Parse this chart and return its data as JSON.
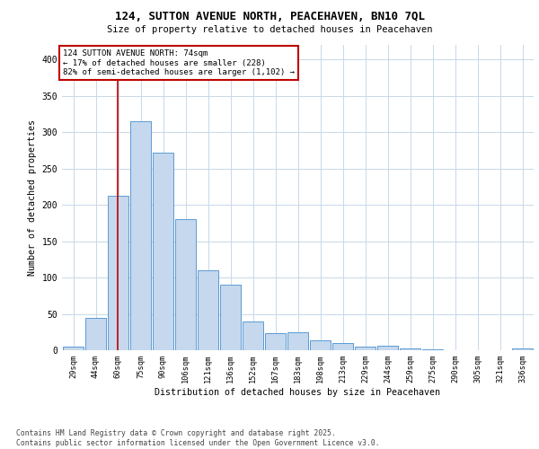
{
  "title_line1": "124, SUTTON AVENUE NORTH, PEACEHAVEN, BN10 7QL",
  "title_line2": "Size of property relative to detached houses in Peacehaven",
  "xlabel": "Distribution of detached houses by size in Peacehaven",
  "ylabel": "Number of detached properties",
  "categories": [
    "29sqm",
    "44sqm",
    "60sqm",
    "75sqm",
    "90sqm",
    "106sqm",
    "121sqm",
    "136sqm",
    "152sqm",
    "167sqm",
    "183sqm",
    "198sqm",
    "213sqm",
    "229sqm",
    "244sqm",
    "259sqm",
    "275sqm",
    "290sqm",
    "305sqm",
    "321sqm",
    "336sqm"
  ],
  "values": [
    5,
    45,
    212,
    315,
    272,
    180,
    110,
    90,
    40,
    23,
    25,
    14,
    10,
    5,
    6,
    3,
    1,
    0,
    0,
    0,
    3
  ],
  "bar_color": "#c5d8ed",
  "bar_edge_color": "#5b9bd5",
  "vline_color": "#c00000",
  "vline_pos": 1.97,
  "annotation_text": "124 SUTTON AVENUE NORTH: 74sqm\n← 17% of detached houses are smaller (228)\n82% of semi-detached houses are larger (1,102) →",
  "annotation_box_color": "#ffffff",
  "annotation_box_edge": "#c00000",
  "ylim": [
    0,
    420
  ],
  "yticks": [
    0,
    50,
    100,
    150,
    200,
    250,
    300,
    350,
    400
  ],
  "background_color": "#ffffff",
  "grid_color": "#c8d8e8",
  "footer_line1": "Contains HM Land Registry data © Crown copyright and database right 2025.",
  "footer_line2": "Contains public sector information licensed under the Open Government Licence v3.0."
}
